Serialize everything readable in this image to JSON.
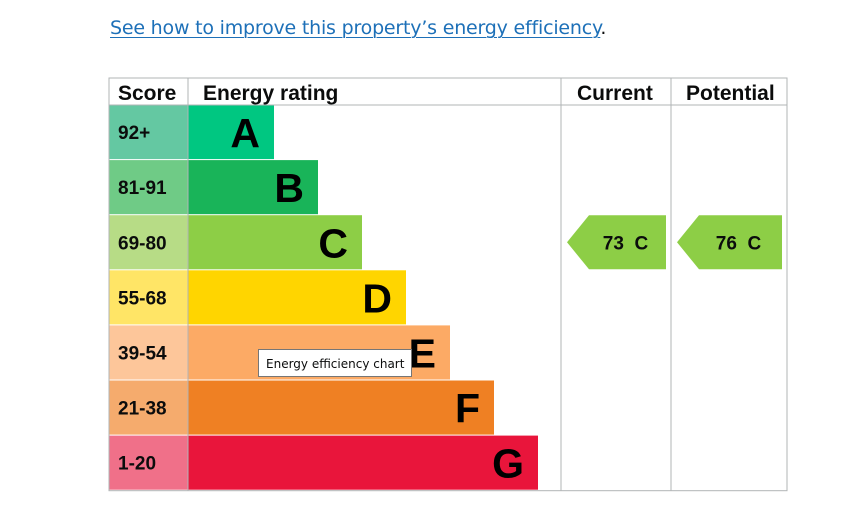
{
  "improve": {
    "link_text": "See how to improve this property’s energy efficiency",
    "suffix": "."
  },
  "tooltip": "Energy efficiency chart",
  "chart_data": {
    "type": "bar",
    "headers": {
      "score": "Score",
      "rating": "Energy rating",
      "current": "Current",
      "potential": "Potential"
    },
    "bands": [
      {
        "letter": "A",
        "score": "92+",
        "color": "#00c781",
        "score_bg": "#64c8a2"
      },
      {
        "letter": "B",
        "score": "81-91",
        "color": "#19b459",
        "score_bg": "#6fcb86"
      },
      {
        "letter": "C",
        "score": "69-80",
        "color": "#8dce46",
        "score_bg": "#b7dc86"
      },
      {
        "letter": "D",
        "score": "55-68",
        "color": "#ffd500",
        "score_bg": "#ffe566"
      },
      {
        "letter": "E",
        "score": "39-54",
        "color": "#fcaa65",
        "score_bg": "#fdc69a"
      },
      {
        "letter": "F",
        "score": "21-38",
        "color": "#ef8023",
        "score_bg": "#f5ab6d"
      },
      {
        "letter": "G",
        "score": "1-20",
        "color": "#e9153b",
        "score_bg": "#f07089"
      }
    ],
    "current": {
      "value": 73,
      "band": "C",
      "label": "73  C",
      "color": "#8dce46"
    },
    "potential": {
      "value": 76,
      "band": "C",
      "label": "76  C",
      "color": "#8dce46"
    }
  }
}
